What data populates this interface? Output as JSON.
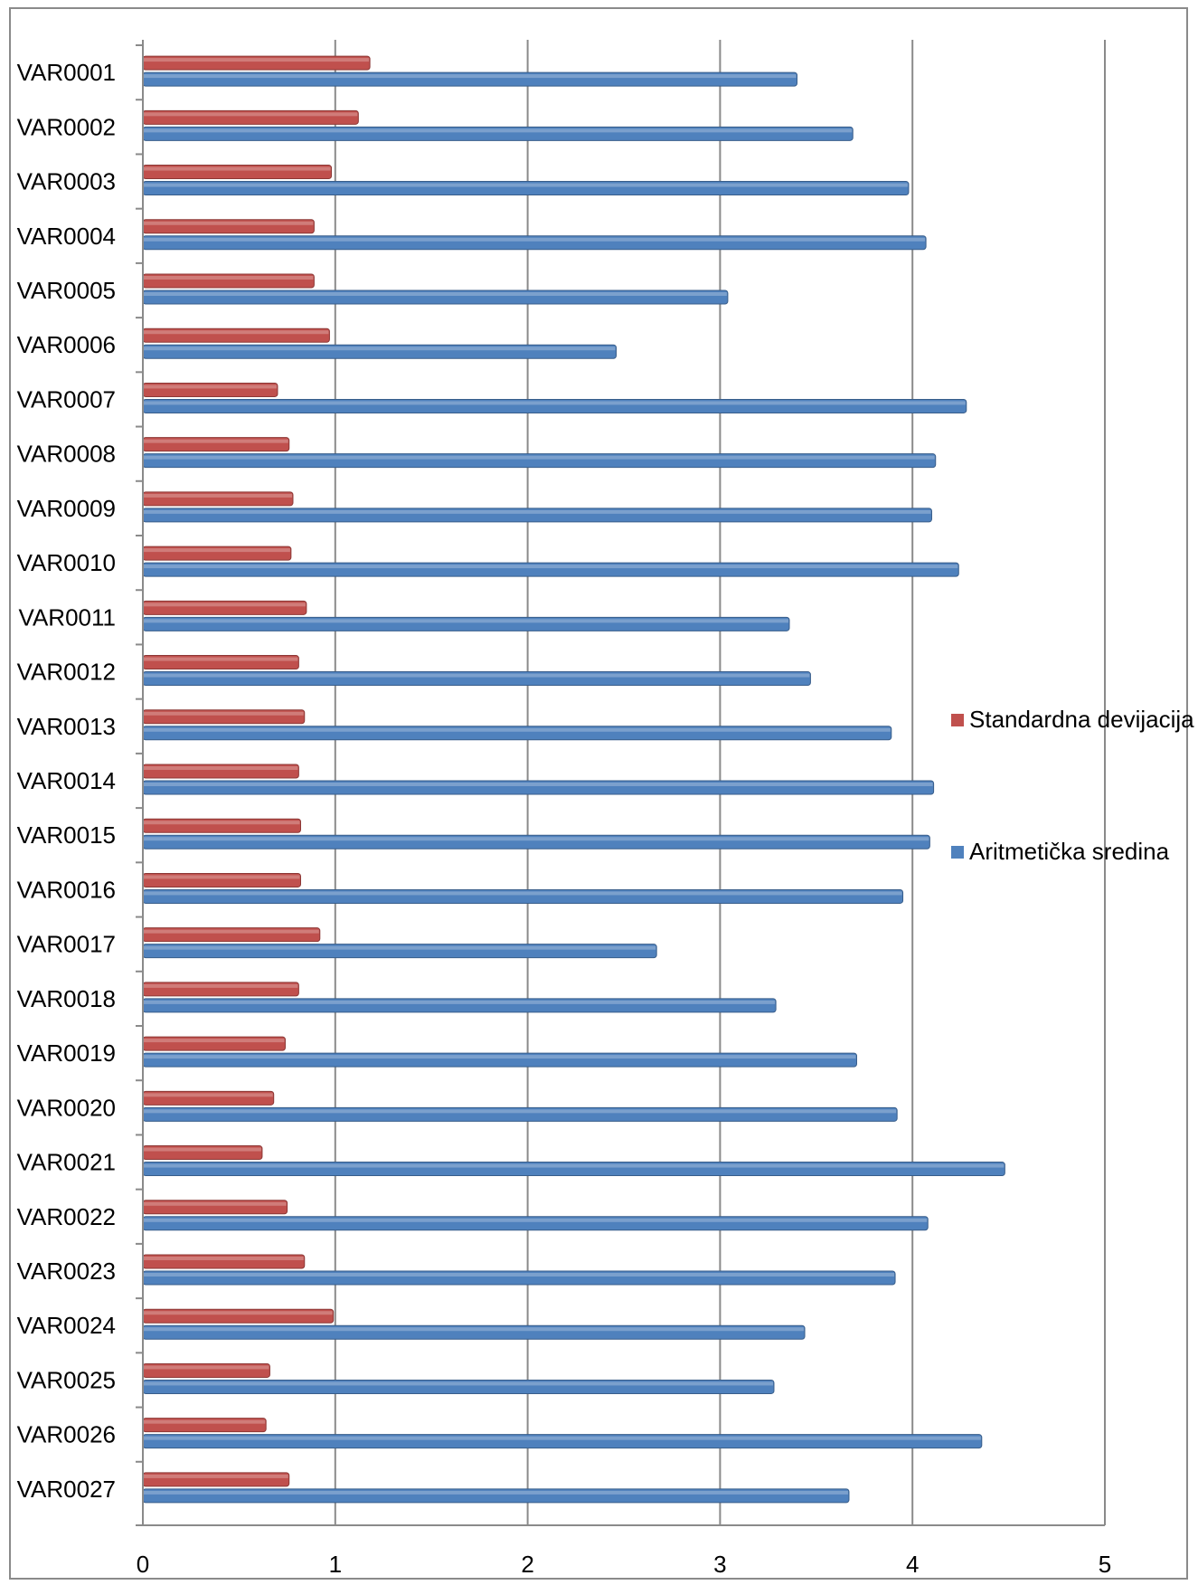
{
  "chart_data": {
    "type": "bar",
    "orientation": "horizontal",
    "categories": [
      "VAR0001",
      "VAR0002",
      "VAR0003",
      "VAR0004",
      "VAR0005",
      "VAR0006",
      "VAR0007",
      "VAR0008",
      "VAR0009",
      "VAR0010",
      "VAR0011",
      "VAR0012",
      "VAR0013",
      "VAR0014",
      "VAR0015",
      "VAR0016",
      "VAR0017",
      "VAR0018",
      "VAR0019",
      "VAR0020",
      "VAR0021",
      "VAR0022",
      "VAR0023",
      "VAR0024",
      "VAR0025",
      "VAR0026",
      "VAR0027"
    ],
    "series": [
      {
        "name": "Standardna devijacija",
        "color": "#c0504d",
        "values": [
          1.18,
          1.12,
          0.98,
          0.89,
          0.89,
          0.97,
          0.7,
          0.76,
          0.78,
          0.77,
          0.85,
          0.81,
          0.84,
          0.81,
          0.82,
          0.82,
          0.92,
          0.81,
          0.74,
          0.68,
          0.62,
          0.75,
          0.84,
          0.99,
          0.66,
          0.64,
          0.76
        ]
      },
      {
        "name": "Aritmetička sredina",
        "color": "#4f81bd",
        "values": [
          3.4,
          3.69,
          3.98,
          4.07,
          3.04,
          2.46,
          4.28,
          4.12,
          4.1,
          4.24,
          3.36,
          3.47,
          3.89,
          4.11,
          4.09,
          3.95,
          2.67,
          3.29,
          3.71,
          3.92,
          4.48,
          4.08,
          3.91,
          3.44,
          3.28,
          4.36,
          3.67
        ]
      }
    ],
    "xticks": [
      "0",
      "1",
      "2",
      "3",
      "4",
      "5"
    ],
    "xlim": [
      0,
      5
    ],
    "grid": true,
    "legend_position": "right",
    "title": "",
    "xlabel": "",
    "ylabel": ""
  }
}
